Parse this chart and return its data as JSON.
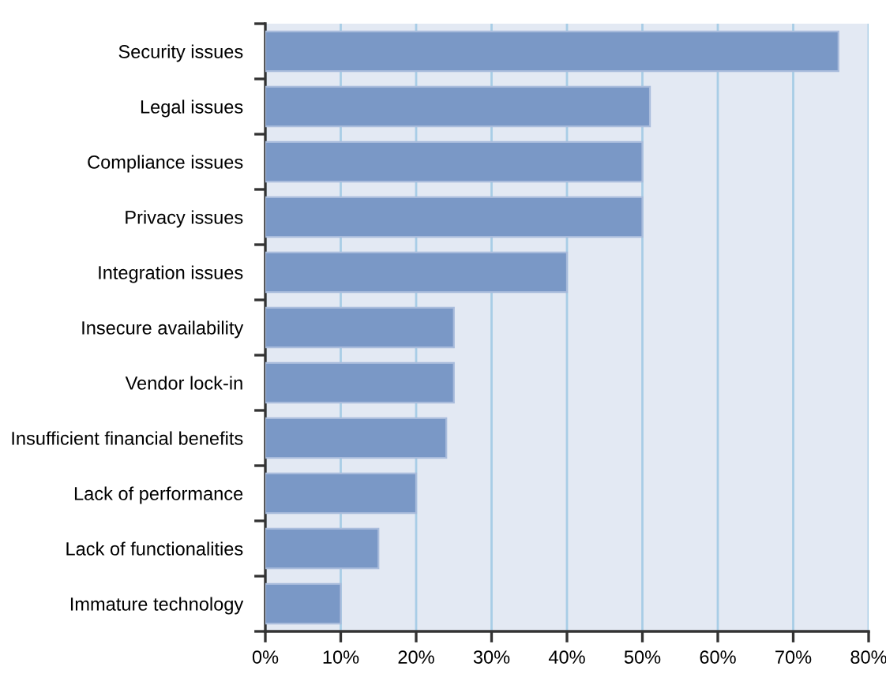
{
  "chart_data": {
    "type": "bar",
    "orientation": "horizontal",
    "categories": [
      "Security issues",
      "Legal issues",
      "Compliance issues",
      "Privacy issues",
      "Integration issues",
      "Insecure availability",
      "Vendor lock-in",
      "Insufficient financial benefits",
      "Lack of performance",
      "Lack of functionalities",
      "Immature technology"
    ],
    "values": [
      76,
      51,
      50,
      50,
      40,
      25,
      25,
      24,
      20,
      15,
      10
    ],
    "color": "#7a98c6",
    "xlim": [
      0,
      80
    ],
    "xticks": [
      {
        "value": 0,
        "label": "0%"
      },
      {
        "value": 10,
        "label": "10%"
      },
      {
        "value": 20,
        "label": "20%"
      },
      {
        "value": 30,
        "label": "30%"
      },
      {
        "value": 40,
        "label": "40%"
      },
      {
        "value": 50,
        "label": "50%"
      },
      {
        "value": 60,
        "label": "60%"
      },
      {
        "value": 70,
        "label": "70%"
      },
      {
        "value": 80,
        "label": "80%"
      }
    ],
    "grid": "x"
  }
}
